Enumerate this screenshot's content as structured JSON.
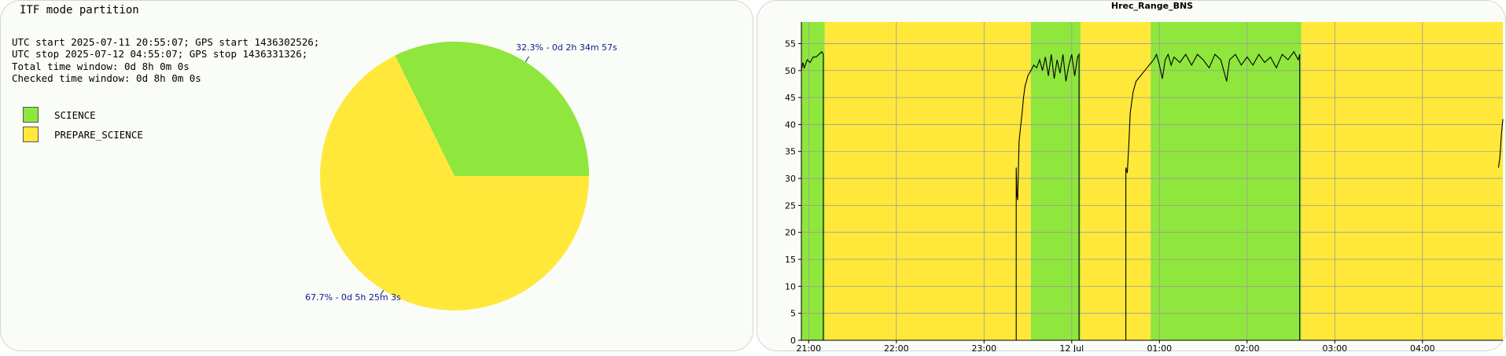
{
  "colors": {
    "science": "#8fe63c",
    "prepare_science": "#ffe83a",
    "grid": "#9a9a9a",
    "line": "#000000",
    "pie_label": "#0b1a8a"
  },
  "left": {
    "title": "ITF mode partition",
    "info_lines": [
      "UTC start 2025-07-11 20:55:07; GPS start 1436302526;",
      "UTC stop 2025-07-12 04:55:07; GPS stop 1436331326;",
      "Total time window: 0d 8h 0m 0s",
      "Checked time window: 0d 8h 0m 0s"
    ],
    "legend": [
      {
        "label": "SCIENCE",
        "color": "#8fe63c"
      },
      {
        "label": "PREPARE_SCIENCE",
        "color": "#ffe83a"
      }
    ]
  },
  "chart_data": [
    {
      "type": "pie",
      "slices": [
        {
          "name": "SCIENCE",
          "value": 32.3,
          "label": "32.3% - 0d 2h 34m 57s",
          "color": "#8fe63c"
        },
        {
          "name": "PREPARE_SCIENCE",
          "value": 67.7,
          "label": "67.7% - 0d 5h 25m 3s",
          "color": "#ffe83a"
        }
      ]
    },
    {
      "type": "line",
      "title": "Hrec_Range_BNS",
      "x_unit": "UTC time",
      "x_range": [
        "2025-07-11 20:55",
        "2025-07-12 04:55"
      ],
      "x_ticks": [
        {
          "t": "2025-07-11 21:00",
          "label": "21:00"
        },
        {
          "t": "2025-07-11 22:00",
          "label": "22:00"
        },
        {
          "t": "2025-07-11 23:00",
          "label": "23:00"
        },
        {
          "t": "2025-07-12 00:00",
          "label": "12 Jul"
        },
        {
          "t": "2025-07-12 01:00",
          "label": "01:00"
        },
        {
          "t": "2025-07-12 02:00",
          "label": "02:00"
        },
        {
          "t": "2025-07-12 03:00",
          "label": "03:00"
        },
        {
          "t": "2025-07-12 04:00",
          "label": "04:00"
        }
      ],
      "ylim": [
        0,
        59
      ],
      "y_ticks": [
        0,
        5,
        10,
        15,
        20,
        25,
        30,
        35,
        40,
        45,
        50,
        55
      ],
      "grid": true,
      "background_bands": [
        {
          "mode": "SCIENCE",
          "start": "2025-07-11 20:55",
          "end": "2025-07-11 21:11"
        },
        {
          "mode": "PREPARE_SCIENCE",
          "start": "2025-07-11 21:11",
          "end": "2025-07-11 23:32"
        },
        {
          "mode": "SCIENCE",
          "start": "2025-07-11 23:32",
          "end": "2025-07-12 00:06"
        },
        {
          "mode": "PREPARE_SCIENCE",
          "start": "2025-07-12 00:06",
          "end": "2025-07-12 00:54"
        },
        {
          "mode": "SCIENCE",
          "start": "2025-07-12 00:54",
          "end": "2025-07-12 02:37"
        },
        {
          "mode": "PREPARE_SCIENCE",
          "start": "2025-07-12 02:37",
          "end": "2025-07-12 04:55"
        }
      ],
      "series": [
        {
          "segments": [
            [
              [
                "2025-07-11 20:55",
                50
              ],
              [
                "2025-07-11 20:56",
                51.5
              ],
              [
                "2025-07-11 20:57",
                50.5
              ],
              [
                "2025-07-11 20:59",
                52
              ],
              [
                "2025-07-11 21:01",
                51.5
              ],
              [
                "2025-07-11 21:03",
                52.5
              ],
              [
                "2025-07-11 21:05",
                52.5
              ],
              [
                "2025-07-11 21:07",
                53
              ],
              [
                "2025-07-11 21:09",
                53.5
              ],
              [
                "2025-07-11 21:10",
                53
              ],
              [
                "2025-07-11 21:10",
                0
              ]
            ],
            [
              [
                "2025-07-11 23:22",
                0
              ],
              [
                "2025-07-11 23:22",
                32
              ],
              [
                "2025-07-11 23:22.5",
                27
              ],
              [
                "2025-07-11 23:23",
                26
              ],
              [
                "2025-07-11 23:24",
                37
              ],
              [
                "2025-07-11 23:26",
                42
              ],
              [
                "2025-07-11 23:27",
                45
              ],
              [
                "2025-07-11 23:28",
                47
              ],
              [
                "2025-07-11 23:30",
                49
              ],
              [
                "2025-07-11 23:32",
                50
              ],
              [
                "2025-07-11 23:34",
                51
              ],
              [
                "2025-07-11 23:36",
                50.5
              ],
              [
                "2025-07-11 23:38",
                52
              ],
              [
                "2025-07-11 23:40",
                50
              ],
              [
                "2025-07-11 23:42",
                52.5
              ],
              [
                "2025-07-11 23:44",
                49
              ],
              [
                "2025-07-11 23:46",
                53
              ],
              [
                "2025-07-11 23:48",
                48.5
              ],
              [
                "2025-07-11 23:50",
                52
              ],
              [
                "2025-07-11 23:52",
                49.5
              ],
              [
                "2025-07-11 23:54",
                53
              ],
              [
                "2025-07-11 23:56",
                48
              ],
              [
                "2025-07-11 23:58",
                51
              ],
              [
                "2025-07-12 00:00",
                53
              ],
              [
                "2025-07-12 00:02",
                49
              ],
              [
                "2025-07-12 00:04",
                52.5
              ],
              [
                "2025-07-12 00:05",
                53
              ],
              [
                "2025-07-12 00:05",
                0
              ]
            ],
            [
              [
                "2025-07-12 00:37",
                0
              ],
              [
                "2025-07-12 00:37",
                32
              ],
              [
                "2025-07-12 00:38",
                31
              ],
              [
                "2025-07-12 00:39",
                36
              ],
              [
                "2025-07-12 00:40",
                42
              ],
              [
                "2025-07-12 00:42",
                46
              ],
              [
                "2025-07-12 00:44",
                48
              ],
              [
                "2025-07-12 00:47",
                49
              ],
              [
                "2025-07-12 00:50",
                50
              ],
              [
                "2025-07-12 00:53",
                51
              ],
              [
                "2025-07-12 00:56",
                52
              ],
              [
                "2025-07-12 00:58",
                53
              ],
              [
                "2025-07-12 01:00",
                51
              ],
              [
                "2025-07-12 01:02",
                48.5
              ],
              [
                "2025-07-12 01:04",
                52
              ],
              [
                "2025-07-12 01:06",
                53
              ],
              [
                "2025-07-12 01:08",
                51
              ],
              [
                "2025-07-12 01:10",
                52.5
              ],
              [
                "2025-07-12 01:14",
                51.5
              ],
              [
                "2025-07-12 01:18",
                53
              ],
              [
                "2025-07-12 01:22",
                51
              ],
              [
                "2025-07-12 01:26",
                53
              ],
              [
                "2025-07-12 01:30",
                52
              ],
              [
                "2025-07-12 01:34",
                50.5
              ],
              [
                "2025-07-12 01:38",
                53
              ],
              [
                "2025-07-12 01:42",
                52
              ],
              [
                "2025-07-12 01:46",
                48
              ],
              [
                "2025-07-12 01:48",
                52
              ],
              [
                "2025-07-12 01:52",
                53
              ],
              [
                "2025-07-12 01:56",
                51
              ],
              [
                "2025-07-12 02:00",
                52.5
              ],
              [
                "2025-07-12 02:04",
                51
              ],
              [
                "2025-07-12 02:08",
                53
              ],
              [
                "2025-07-12 02:12",
                51.5
              ],
              [
                "2025-07-12 02:16",
                52.5
              ],
              [
                "2025-07-12 02:20",
                50.5
              ],
              [
                "2025-07-12 02:24",
                53
              ],
              [
                "2025-07-12 02:28",
                52
              ],
              [
                "2025-07-12 02:32",
                53.5
              ],
              [
                "2025-07-12 02:35",
                52
              ],
              [
                "2025-07-12 02:36",
                53
              ],
              [
                "2025-07-12 02:36",
                0
              ]
            ],
            [
              [
                "2025-07-12 04:52",
                32
              ],
              [
                "2025-07-12 04:53",
                34
              ],
              [
                "2025-07-12 04:54",
                38
              ],
              [
                "2025-07-12 04:55",
                41
              ]
            ]
          ]
        }
      ]
    }
  ]
}
